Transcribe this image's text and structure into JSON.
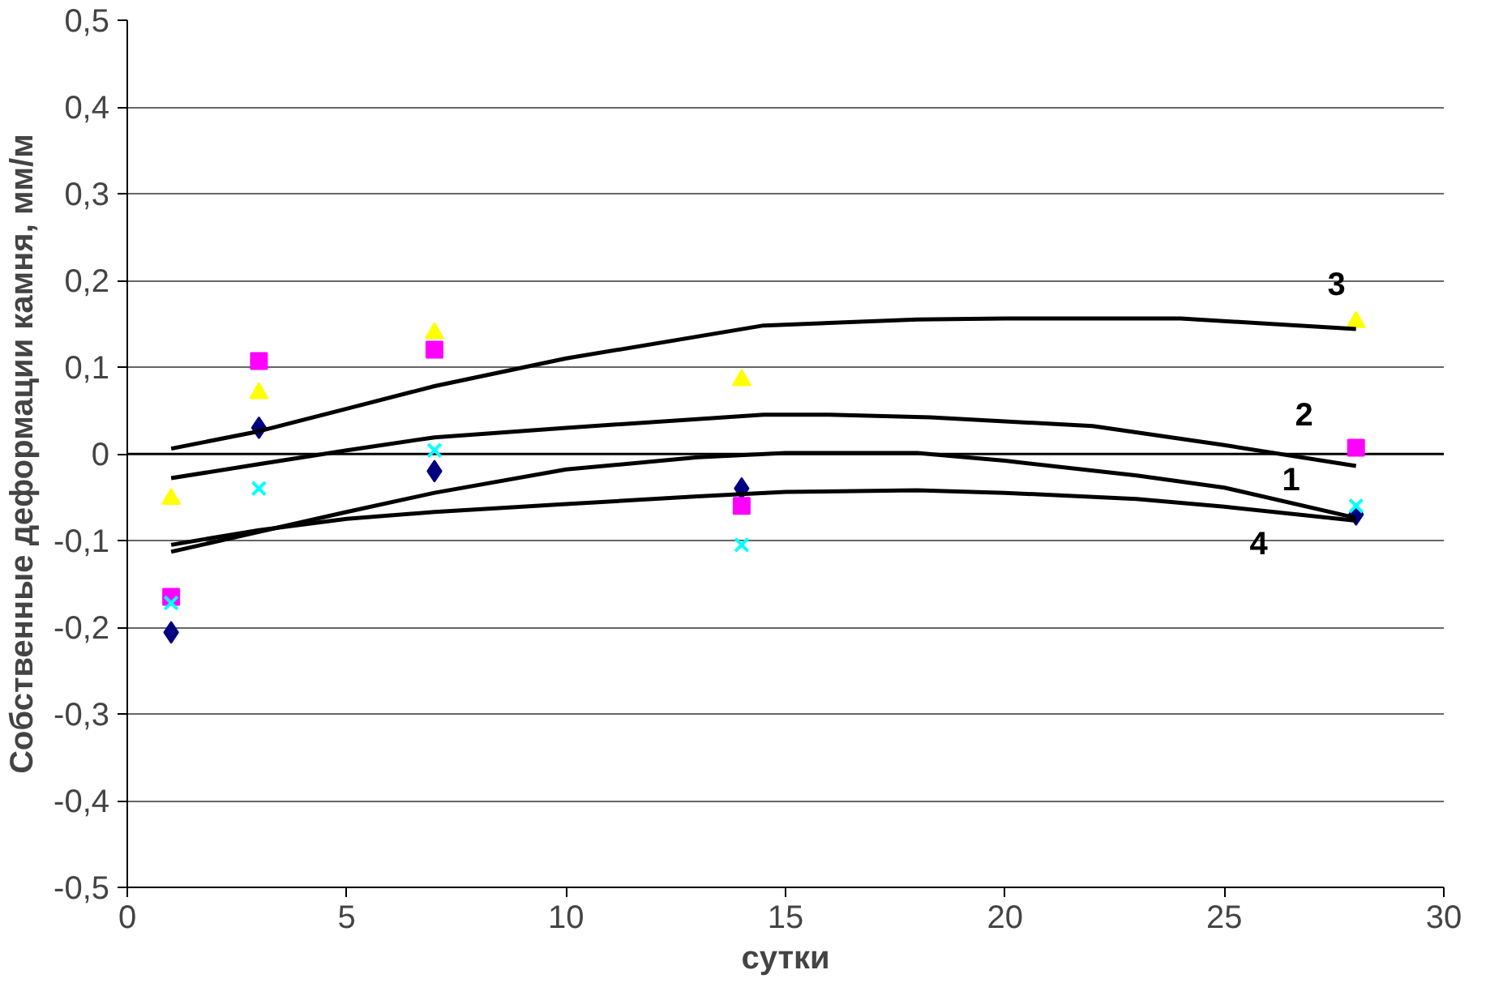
{
  "chart_data": {
    "type": "scatter",
    "xlabel": "сутки",
    "ylabel": "Собственные деформации камня, мм/м",
    "xlim": [
      0,
      30
    ],
    "xticks": [
      0,
      5,
      10,
      15,
      20,
      25,
      30
    ],
    "ylim": [
      -0.5,
      0.5
    ],
    "yticks": [
      {
        "value": -0.5,
        "label": "-0,5"
      },
      {
        "value": -0.4,
        "label": "-0,4"
      },
      {
        "value": -0.3,
        "label": "-0,3"
      },
      {
        "value": -0.2,
        "label": "-0,2"
      },
      {
        "value": -0.1,
        "label": "-0,1"
      },
      {
        "value": 0,
        "label": "0"
      },
      {
        "value": 0.1,
        "label": "0,1"
      },
      {
        "value": 0.2,
        "label": "0,2"
      },
      {
        "value": 0.3,
        "label": "0,3"
      },
      {
        "value": 0.4,
        "label": "0,4"
      },
      {
        "value": 0.5,
        "label": "0,5"
      }
    ],
    "grid": "y",
    "series": [
      {
        "marker": "diamond",
        "color": "#000080",
        "x": [
          1,
          3,
          7,
          14,
          28
        ],
        "values": [
          -0.206,
          0.03,
          -0.02,
          -0.04,
          -0.07
        ]
      },
      {
        "marker": "square",
        "color": "#ff00ff",
        "x": [
          1,
          3,
          7,
          14,
          28
        ],
        "values": [
          -0.165,
          0.107,
          0.12,
          -0.06,
          0.007
        ]
      },
      {
        "marker": "triangle",
        "color": "#ffff00",
        "x": [
          1,
          3,
          7,
          14,
          28
        ],
        "values": [
          -0.052,
          0.07,
          0.139,
          0.085,
          0.152
        ]
      },
      {
        "marker": "cross",
        "color": "#00ffff",
        "x": [
          1,
          3,
          7,
          14,
          28
        ],
        "values": [
          -0.172,
          -0.04,
          0.004,
          -0.105,
          -0.06
        ]
      },
      {
        "type": "line",
        "name": "3",
        "color": "#000000",
        "x": [
          1,
          3,
          5,
          7,
          10,
          14.5,
          18,
          20,
          24,
          26,
          28
        ],
        "values": [
          0.006,
          0.026,
          0.052,
          0.078,
          0.11,
          0.148,
          0.155,
          0.156,
          0.156,
          0.15,
          0.144
        ]
      },
      {
        "type": "line",
        "name": "2",
        "color": "#000000",
        "x": [
          1,
          3,
          5,
          7,
          10,
          14.5,
          16,
          18.3,
          22,
          25,
          28
        ],
        "values": [
          -0.028,
          -0.012,
          0.004,
          0.019,
          0.03,
          0.045,
          0.045,
          0.042,
          0.032,
          0.01,
          -0.014
        ]
      },
      {
        "type": "line",
        "name": "1",
        "color": "#000000",
        "x": [
          1,
          3,
          5,
          7,
          10,
          13,
          15,
          18,
          20,
          23,
          25,
          28
        ],
        "values": [
          -0.113,
          -0.09,
          -0.067,
          -0.045,
          -0.018,
          -0.004,
          0.001,
          0.001,
          -0.008,
          -0.025,
          -0.039,
          -0.074
        ]
      },
      {
        "type": "line",
        "name": "4",
        "color": "#000000",
        "x": [
          1,
          3,
          5,
          7,
          10,
          13,
          15,
          18,
          20,
          23,
          25,
          28
        ],
        "values": [
          -0.105,
          -0.088,
          -0.075,
          -0.067,
          -0.058,
          -0.049,
          -0.044,
          -0.042,
          -0.045,
          -0.052,
          -0.061,
          -0.077
        ]
      }
    ]
  }
}
